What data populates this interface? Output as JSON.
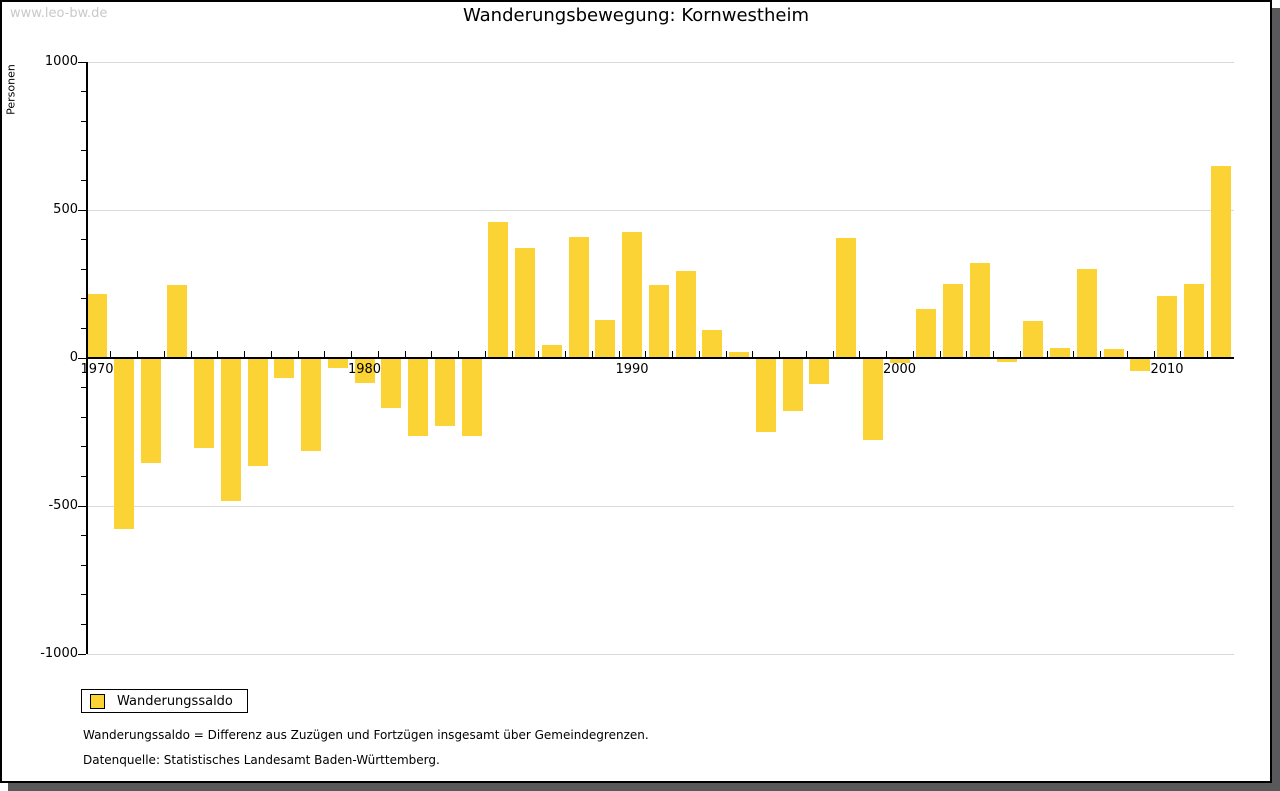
{
  "window": {
    "watermark": "www.leo-bw.de"
  },
  "header": {
    "title": "Wanderungsbewegung: Kornwestheim"
  },
  "chart_data": {
    "type": "bar",
    "title": "Wanderungsbewegung: Kornwestheim",
    "ylabel": "Personen",
    "xlabel": "",
    "x": [
      1970,
      1971,
      1972,
      1973,
      1974,
      1975,
      1976,
      1977,
      1978,
      1979,
      1980,
      1981,
      1982,
      1983,
      1984,
      1985,
      1986,
      1987,
      1988,
      1989,
      1990,
      1991,
      1992,
      1993,
      1994,
      1995,
      1996,
      1997,
      1998,
      1999,
      2000,
      2001,
      2002,
      2003,
      2004,
      2005,
      2006,
      2007,
      2008,
      2009,
      2010,
      2011,
      2012
    ],
    "series": [
      {
        "name": "Wanderungssaldo",
        "values": [
          215,
          -575,
          -350,
          245,
          -300,
          -480,
          -360,
          -65,
          -310,
          -30,
          -80,
          -165,
          -260,
          -225,
          -260,
          460,
          370,
          45,
          410,
          130,
          425,
          245,
          295,
          95,
          20,
          -245,
          -175,
          -85,
          405,
          -275,
          -15,
          165,
          250,
          320,
          -10,
          125,
          35,
          300,
          30,
          -40,
          210,
          250,
          650
        ]
      }
    ],
    "ylim": [
      -1000,
      1000
    ],
    "ytick_step_major": 500,
    "ytick_step_minor": 100,
    "ytick_labels": [
      "1000",
      "500",
      "0",
      "-500",
      "-1000"
    ],
    "xtick_labels": [
      1970,
      1980,
      1990,
      2000,
      2010
    ],
    "grid": "horizontal",
    "gridline_values": [
      1000,
      500,
      -500,
      -1000
    ],
    "legend_position": "bottom-left",
    "bar_color": "#FBD335"
  },
  "legend": {
    "items": [
      {
        "label": "Wanderungssaldo",
        "color": "#FBD335"
      }
    ]
  },
  "footnotes": {
    "line1": "Wanderungssaldo = Differenz aus Zuzügen und Fortzügen insgesamt über Gemeindegrenzen.",
    "line2": "Datenquelle: Statistisches Landesamt Baden-Württemberg."
  },
  "colors": {
    "bar": "#FBD335",
    "gridline": "#d9d9d9",
    "axis": "#000000",
    "watermark": "#c9c9c9",
    "window_shadow": "#59595b"
  }
}
